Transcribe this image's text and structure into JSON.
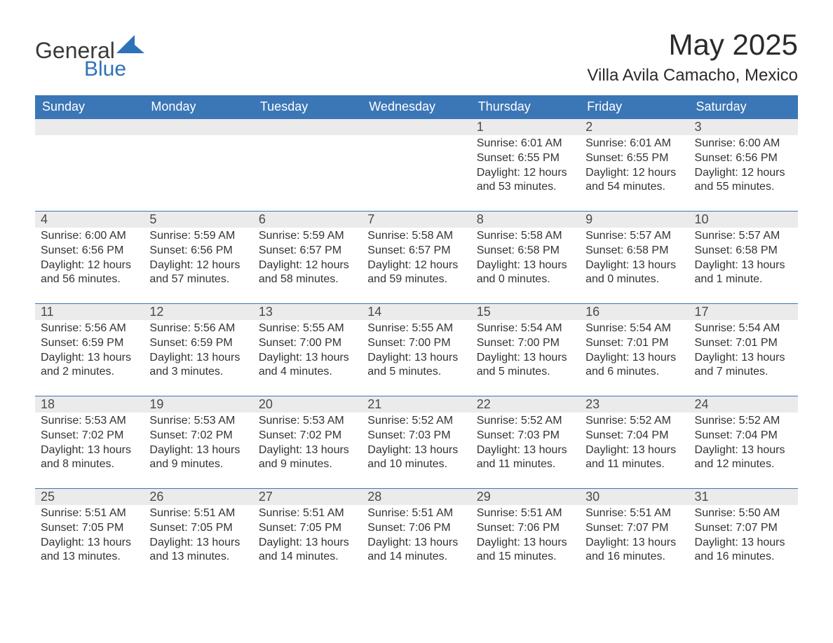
{
  "brand": {
    "name1": "General",
    "name2": "Blue",
    "accent": "#2f72b8"
  },
  "title": "May 2025",
  "location": "Villa Avila Camacho, Mexico",
  "colors": {
    "header_bg": "#3b76b6",
    "header_fg": "#ffffff",
    "daynum_bg": "#ebebeb",
    "row_border": "#3b76b6",
    "text": "#333333",
    "page_bg": "#ffffff"
  },
  "weekday_labels": [
    "Sunday",
    "Monday",
    "Tuesday",
    "Wednesday",
    "Thursday",
    "Friday",
    "Saturday"
  ],
  "field_labels": {
    "sunrise": "Sunrise:",
    "sunset": "Sunset:",
    "daylight": "Daylight:"
  },
  "weeks": [
    [
      null,
      null,
      null,
      null,
      {
        "n": "1",
        "sunrise": "6:01 AM",
        "sunset": "6:55 PM",
        "daylight": "12 hours and 53 minutes."
      },
      {
        "n": "2",
        "sunrise": "6:01 AM",
        "sunset": "6:55 PM",
        "daylight": "12 hours and 54 minutes."
      },
      {
        "n": "3",
        "sunrise": "6:00 AM",
        "sunset": "6:56 PM",
        "daylight": "12 hours and 55 minutes."
      }
    ],
    [
      {
        "n": "4",
        "sunrise": "6:00 AM",
        "sunset": "6:56 PM",
        "daylight": "12 hours and 56 minutes."
      },
      {
        "n": "5",
        "sunrise": "5:59 AM",
        "sunset": "6:56 PM",
        "daylight": "12 hours and 57 minutes."
      },
      {
        "n": "6",
        "sunrise": "5:59 AM",
        "sunset": "6:57 PM",
        "daylight": "12 hours and 58 minutes."
      },
      {
        "n": "7",
        "sunrise": "5:58 AM",
        "sunset": "6:57 PM",
        "daylight": "12 hours and 59 minutes."
      },
      {
        "n": "8",
        "sunrise": "5:58 AM",
        "sunset": "6:58 PM",
        "daylight": "13 hours and 0 minutes."
      },
      {
        "n": "9",
        "sunrise": "5:57 AM",
        "sunset": "6:58 PM",
        "daylight": "13 hours and 0 minutes."
      },
      {
        "n": "10",
        "sunrise": "5:57 AM",
        "sunset": "6:58 PM",
        "daylight": "13 hours and 1 minute."
      }
    ],
    [
      {
        "n": "11",
        "sunrise": "5:56 AM",
        "sunset": "6:59 PM",
        "daylight": "13 hours and 2 minutes."
      },
      {
        "n": "12",
        "sunrise": "5:56 AM",
        "sunset": "6:59 PM",
        "daylight": "13 hours and 3 minutes."
      },
      {
        "n": "13",
        "sunrise": "5:55 AM",
        "sunset": "7:00 PM",
        "daylight": "13 hours and 4 minutes."
      },
      {
        "n": "14",
        "sunrise": "5:55 AM",
        "sunset": "7:00 PM",
        "daylight": "13 hours and 5 minutes."
      },
      {
        "n": "15",
        "sunrise": "5:54 AM",
        "sunset": "7:00 PM",
        "daylight": "13 hours and 5 minutes."
      },
      {
        "n": "16",
        "sunrise": "5:54 AM",
        "sunset": "7:01 PM",
        "daylight": "13 hours and 6 minutes."
      },
      {
        "n": "17",
        "sunrise": "5:54 AM",
        "sunset": "7:01 PM",
        "daylight": "13 hours and 7 minutes."
      }
    ],
    [
      {
        "n": "18",
        "sunrise": "5:53 AM",
        "sunset": "7:02 PM",
        "daylight": "13 hours and 8 minutes."
      },
      {
        "n": "19",
        "sunrise": "5:53 AM",
        "sunset": "7:02 PM",
        "daylight": "13 hours and 9 minutes."
      },
      {
        "n": "20",
        "sunrise": "5:53 AM",
        "sunset": "7:02 PM",
        "daylight": "13 hours and 9 minutes."
      },
      {
        "n": "21",
        "sunrise": "5:52 AM",
        "sunset": "7:03 PM",
        "daylight": "13 hours and 10 minutes."
      },
      {
        "n": "22",
        "sunrise": "5:52 AM",
        "sunset": "7:03 PM",
        "daylight": "13 hours and 11 minutes."
      },
      {
        "n": "23",
        "sunrise": "5:52 AM",
        "sunset": "7:04 PM",
        "daylight": "13 hours and 11 minutes."
      },
      {
        "n": "24",
        "sunrise": "5:52 AM",
        "sunset": "7:04 PM",
        "daylight": "13 hours and 12 minutes."
      }
    ],
    [
      {
        "n": "25",
        "sunrise": "5:51 AM",
        "sunset": "7:05 PM",
        "daylight": "13 hours and 13 minutes."
      },
      {
        "n": "26",
        "sunrise": "5:51 AM",
        "sunset": "7:05 PM",
        "daylight": "13 hours and 13 minutes."
      },
      {
        "n": "27",
        "sunrise": "5:51 AM",
        "sunset": "7:05 PM",
        "daylight": "13 hours and 14 minutes."
      },
      {
        "n": "28",
        "sunrise": "5:51 AM",
        "sunset": "7:06 PM",
        "daylight": "13 hours and 14 minutes."
      },
      {
        "n": "29",
        "sunrise": "5:51 AM",
        "sunset": "7:06 PM",
        "daylight": "13 hours and 15 minutes."
      },
      {
        "n": "30",
        "sunrise": "5:51 AM",
        "sunset": "7:07 PM",
        "daylight": "13 hours and 16 minutes."
      },
      {
        "n": "31",
        "sunrise": "5:50 AM",
        "sunset": "7:07 PM",
        "daylight": "13 hours and 16 minutes."
      }
    ]
  ]
}
